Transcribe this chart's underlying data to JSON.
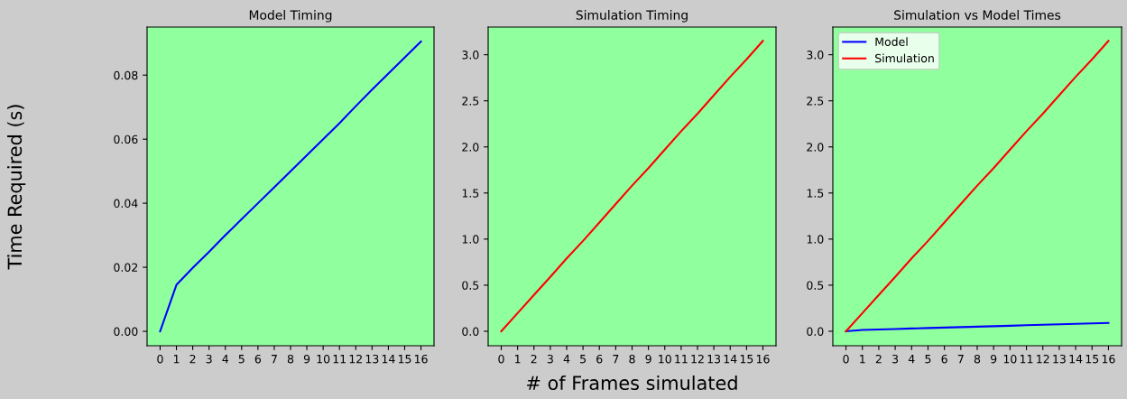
{
  "chart_data": [
    {
      "type": "line",
      "title": "Model Timing",
      "ylabel": "Time Required (s)",
      "x": [
        0,
        1,
        2,
        3,
        4,
        5,
        6,
        7,
        8,
        9,
        10,
        11,
        12,
        13,
        14,
        15,
        16
      ],
      "xlim": [
        -0.8,
        16.8
      ],
      "xticks": [
        0,
        1,
        2,
        3,
        4,
        5,
        6,
        7,
        8,
        9,
        10,
        11,
        12,
        13,
        14,
        15,
        16
      ],
      "ylim": [
        -0.0045,
        0.095
      ],
      "yticks": [
        {
          "value": 0,
          "label": "0.00"
        },
        {
          "value": 0.02,
          "label": "0.02"
        },
        {
          "value": 0.04,
          "label": "0.04"
        },
        {
          "value": 0.06,
          "label": "0.06"
        },
        {
          "value": 0.08,
          "label": "0.08"
        }
      ],
      "series": [
        {
          "color": "#0000ff",
          "values": [
            0,
            0.0145,
            0.0198,
            0.0248,
            0.03,
            0.035,
            0.04,
            0.045,
            0.05,
            0.055,
            0.06,
            0.065,
            0.0703,
            0.0755,
            0.0805,
            0.0855,
            0.0905
          ]
        }
      ]
    },
    {
      "type": "line",
      "title": "Simulation Timing",
      "xlabel": "# of Frames simulated",
      "x": [
        0,
        1,
        2,
        3,
        4,
        5,
        6,
        7,
        8,
        9,
        10,
        11,
        12,
        13,
        14,
        15,
        16
      ],
      "xlim": [
        -0.8,
        16.8
      ],
      "xticks": [
        0,
        1,
        2,
        3,
        4,
        5,
        6,
        7,
        8,
        9,
        10,
        11,
        12,
        13,
        14,
        15,
        16
      ],
      "ylim": [
        -0.157,
        3.3
      ],
      "yticks": [
        {
          "value": 0,
          "label": "0.0"
        },
        {
          "value": 0.5,
          "label": "0.5"
        },
        {
          "value": 1,
          "label": "1.0"
        },
        {
          "value": 1.5,
          "label": "1.5"
        },
        {
          "value": 2,
          "label": "2.0"
        },
        {
          "value": 2.5,
          "label": "2.5"
        },
        {
          "value": 3,
          "label": "3.0"
        }
      ],
      "series": [
        {
          "color": "#ff0000",
          "values": [
            0,
            0.197,
            0.394,
            0.59,
            0.79,
            0.98,
            1.18,
            1.38,
            1.58,
            1.77,
            1.97,
            2.17,
            2.36,
            2.56,
            2.76,
            2.95,
            3.15
          ]
        }
      ]
    },
    {
      "type": "line",
      "title": "Simulation vs Model Times",
      "legend": "top left",
      "x": [
        0,
        1,
        2,
        3,
        4,
        5,
        6,
        7,
        8,
        9,
        10,
        11,
        12,
        13,
        14,
        15,
        16
      ],
      "xlim": [
        -0.8,
        16.8
      ],
      "xticks": [
        0,
        1,
        2,
        3,
        4,
        5,
        6,
        7,
        8,
        9,
        10,
        11,
        12,
        13,
        14,
        15,
        16
      ],
      "ylim": [
        -0.157,
        3.3
      ],
      "yticks": [
        {
          "value": 0,
          "label": "0.0"
        },
        {
          "value": 0.5,
          "label": "0.5"
        },
        {
          "value": 1,
          "label": "1.0"
        },
        {
          "value": 1.5,
          "label": "1.5"
        },
        {
          "value": 2,
          "label": "2.0"
        },
        {
          "value": 2.5,
          "label": "2.5"
        },
        {
          "value": 3,
          "label": "3.0"
        }
      ],
      "series": [
        {
          "name": "Model",
          "color": "#0000ff",
          "values": [
            0,
            0.0145,
            0.0198,
            0.0248,
            0.03,
            0.035,
            0.04,
            0.045,
            0.05,
            0.055,
            0.06,
            0.065,
            0.0703,
            0.0755,
            0.0805,
            0.0855,
            0.0905
          ]
        },
        {
          "name": "Simulation",
          "color": "#ff0000",
          "values": [
            0,
            0.197,
            0.394,
            0.59,
            0.79,
            0.98,
            1.18,
            1.38,
            1.58,
            1.77,
            1.97,
            2.17,
            2.36,
            2.56,
            2.76,
            2.95,
            3.15
          ]
        }
      ]
    }
  ]
}
